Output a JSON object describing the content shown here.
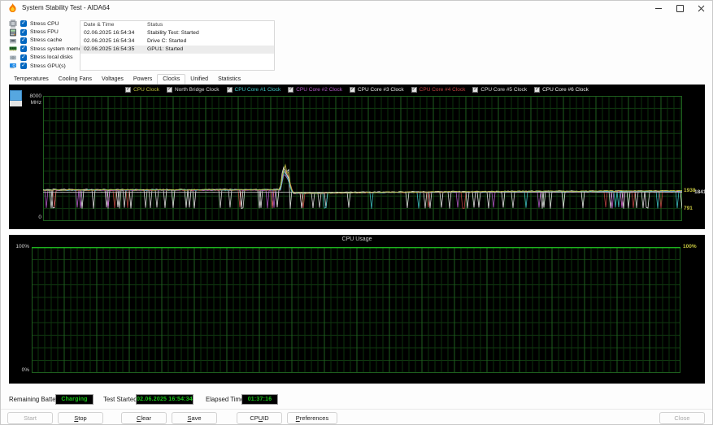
{
  "window": {
    "title": "System Stability Test - AIDA64"
  },
  "stress_options": [
    {
      "label": "Stress CPU",
      "icon": "cpu-icon",
      "checked": true
    },
    {
      "label": "Stress FPU",
      "icon": "fpu-icon",
      "checked": true
    },
    {
      "label": "Stress cache",
      "icon": "cache-icon",
      "checked": true
    },
    {
      "label": "Stress system memory",
      "icon": "memory-icon",
      "checked": true
    },
    {
      "label": "Stress local disks",
      "icon": "disk-icon",
      "checked": true
    },
    {
      "label": "Stress GPU(s)",
      "icon": "gpu-icon",
      "checked": true
    }
  ],
  "event_log": {
    "columns": [
      "Date & Time",
      "Status"
    ],
    "rows": [
      {
        "datetime": "02.06.2025 16:54:34",
        "status": "Stability Test: Started",
        "selected": false
      },
      {
        "datetime": "02.06.2025 16:54:34",
        "status": "Drive C: Started",
        "selected": false
      },
      {
        "datetime": "02.06.2025 16:54:35",
        "status": "GPU1: Started",
        "selected": true
      }
    ]
  },
  "tabs": [
    {
      "label": "Temperatures",
      "selected": false
    },
    {
      "label": "Cooling Fans",
      "selected": false
    },
    {
      "label": "Voltages",
      "selected": false
    },
    {
      "label": "Powers",
      "selected": false
    },
    {
      "label": "Clocks",
      "selected": true
    },
    {
      "label": "Unified",
      "selected": false
    },
    {
      "label": "Statistics",
      "selected": false
    }
  ],
  "legend": [
    {
      "label": "CPU Clock",
      "color": "#bdbd3c",
      "checked": true
    },
    {
      "label": "North Bridge Clock",
      "color": "#d9d9d9",
      "checked": true
    },
    {
      "label": "CPU Core #1 Clock",
      "color": "#3fc6c6",
      "checked": true
    },
    {
      "label": "CPU Core #2 Clock",
      "color": "#b55bc9",
      "checked": true
    },
    {
      "label": "CPU Core #3 Clock",
      "color": "#e8e8e8",
      "checked": true
    },
    {
      "label": "CPU Core #4 Clock",
      "color": "#c24242",
      "checked": true
    },
    {
      "label": "CPU Core #5 Clock",
      "color": "#dcdcdc",
      "checked": true
    },
    {
      "label": "CPU Core #6 Clock",
      "color": "#f0f0f0",
      "checked": true
    }
  ],
  "chart_data": [
    {
      "type": "line",
      "id": "clocks",
      "title": "",
      "grid": true,
      "background": "#000000",
      "y_axis": {
        "min": 0,
        "max": 8000,
        "top_label": "8000",
        "unit": "MHz",
        "bottom_label": "0"
      },
      "right_value_labels": [
        {
          "text": "1938",
          "value": 1938,
          "color": "#c6c63f",
          "dx": 0
        },
        {
          "text": "1841",
          "value": 1841,
          "color": "#d9d9d9",
          "dx": 13
        },
        {
          "text": "791",
          "value": 791,
          "color": "#c6c63f",
          "dx": 0
        }
      ],
      "series": [
        {
          "name": "CPU Clock",
          "color": "#bdbd3c",
          "noise": 26,
          "keypoints": [
            [
              0,
              1992
            ],
            [
              0.37,
              2000
            ],
            [
              0.3735,
              2550
            ],
            [
              0.3755,
              3690
            ],
            [
              0.377,
              3150
            ],
            [
              0.379,
              3620
            ],
            [
              0.381,
              2950
            ],
            [
              0.3835,
              3380
            ],
            [
              0.386,
              2450
            ],
            [
              0.391,
              1790
            ],
            [
              0.43,
              1780
            ],
            [
              0.55,
              1850
            ],
            [
              0.75,
              1905
            ],
            [
              1,
              1938
            ]
          ]
        },
        {
          "name": "North Bridge Clock",
          "color": "#d9d9d9",
          "noise": 7,
          "keypoints": [
            [
              0,
              1845
            ],
            [
              1,
              1841
            ]
          ]
        },
        {
          "name": "CPU Core #1 Clock",
          "color": "#3fc6c6",
          "noise": 30,
          "dips": {
            "floor": 791,
            "frequency": 0.035
          },
          "keypoints": [
            [
              0,
              1982
            ],
            [
              0.372,
              1992
            ],
            [
              0.3765,
              3210
            ],
            [
              0.3825,
              2760
            ],
            [
              0.39,
              1775
            ],
            [
              0.5,
              1820
            ],
            [
              0.75,
              1880
            ],
            [
              1,
              1902
            ]
          ]
        },
        {
          "name": "CPU Core #2 Clock",
          "color": "#b55bc9",
          "noise": 30,
          "dips": {
            "floor": 791,
            "frequency": 0.028
          },
          "keypoints": [
            [
              0,
              1968
            ],
            [
              0.372,
              1985
            ],
            [
              0.377,
              3020
            ],
            [
              0.384,
              2600
            ],
            [
              0.39,
              1770
            ],
            [
              0.55,
              1840
            ],
            [
              1,
              1893
            ]
          ]
        },
        {
          "name": "CPU Core #3 Clock",
          "color": "#e8e8e8",
          "noise": 36,
          "dips": {
            "floor": 791,
            "frequency": 0.05
          },
          "keypoints": [
            [
              0,
              2008
            ],
            [
              0.371,
              2010
            ],
            [
              0.3755,
              3590
            ],
            [
              0.38,
              3120
            ],
            [
              0.3845,
              3300
            ],
            [
              0.39,
              1800
            ],
            [
              0.5,
              1845
            ],
            [
              0.75,
              1900
            ],
            [
              1,
              1922
            ]
          ]
        },
        {
          "name": "CPU Core #4 Clock",
          "color": "#c24242",
          "noise": 30,
          "dips": {
            "floor": 791,
            "frequency": 0.035
          },
          "keypoints": [
            [
              0,
              1958
            ],
            [
              0.372,
              1975
            ],
            [
              0.3775,
              3340
            ],
            [
              0.384,
              2880
            ],
            [
              0.391,
              1765
            ],
            [
              0.55,
              1835
            ],
            [
              1,
              1885
            ]
          ]
        },
        {
          "name": "CPU Core #5 Clock",
          "color": "#dcdcdc",
          "noise": 34,
          "dips": {
            "floor": 791,
            "frequency": 0.045
          },
          "keypoints": [
            [
              0,
              1994
            ],
            [
              0.372,
              2002
            ],
            [
              0.376,
              3450
            ],
            [
              0.383,
              2950
            ],
            [
              0.39,
              1785
            ],
            [
              0.5,
              1840
            ],
            [
              1,
              1910
            ]
          ]
        },
        {
          "name": "CPU Core #6 Clock",
          "color": "#f0f0f0",
          "noise": 33,
          "dips": {
            "floor": 791,
            "frequency": 0.04
          },
          "keypoints": [
            [
              0,
              1976
            ],
            [
              0.372,
              1988
            ],
            [
              0.377,
              3280
            ],
            [
              0.3835,
              2820
            ],
            [
              0.39,
              1772
            ],
            [
              0.55,
              1838
            ],
            [
              1,
              1898
            ]
          ]
        }
      ]
    },
    {
      "type": "line",
      "id": "cpu-usage",
      "title": "CPU Usage",
      "grid": true,
      "background": "#000000",
      "y_axis": {
        "min": 0,
        "max": 100,
        "top_label": "100%",
        "bottom_label": "0%"
      },
      "right_value_labels": [
        {
          "text": "100%",
          "value": 100,
          "color": "#c6c63f",
          "dx": 0
        }
      ],
      "series": [
        {
          "name": "CPU Usage",
          "color": "#1fd41f",
          "noise": 0,
          "keypoints": [
            [
              0,
              100
            ],
            [
              1,
              100
            ]
          ]
        }
      ]
    }
  ],
  "status_bar": {
    "battery_label": "Remaining Battery:",
    "battery_value": "Charging",
    "test_started_label": "Test Started:",
    "test_started_value": "02.06.2025 16:54:34",
    "elapsed_label": "Elapsed Time:",
    "elapsed_value": "01:37:16",
    "lcd_text_color": "#17c517"
  },
  "buttons": {
    "left": [
      {
        "label": "Start",
        "enabled": false,
        "mnemonic": null
      },
      {
        "label": "Stop",
        "enabled": true,
        "mnemonic": 0
      },
      {
        "label": "Clear",
        "enabled": true,
        "mnemonic": 0
      },
      {
        "label": "Save",
        "enabled": true,
        "mnemonic": 0
      },
      {
        "label": "CPUID",
        "enabled": true,
        "mnemonic": 2
      },
      {
        "label": "Preferences",
        "enabled": true,
        "mnemonic": 0
      }
    ],
    "right": [
      {
        "label": "Close",
        "enabled": false,
        "mnemonic": null
      }
    ]
  }
}
